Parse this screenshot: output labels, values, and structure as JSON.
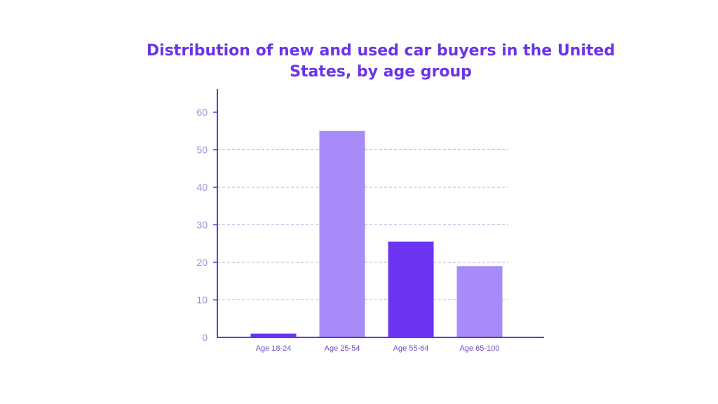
{
  "chart_data": {
    "type": "bar",
    "title": "Distribution of new and used car buyers in the United States, by age group",
    "categories": [
      "Age 18-24",
      "Age 25-54",
      "Age 55-64",
      "Age 65-100"
    ],
    "values": [
      1,
      55,
      25.5,
      19
    ],
    "bar_colors": [
      "#6a34f0",
      "#a88af8",
      "#6a34f0",
      "#a88af8"
    ],
    "ylim": [
      0,
      60
    ],
    "yticks": [
      0,
      10,
      20,
      30,
      40,
      50,
      60
    ],
    "gridlines": true,
    "xlabel": "",
    "ylabel": "",
    "axis_color": "#6a34e9",
    "grid_color": "#b9b0e0"
  }
}
